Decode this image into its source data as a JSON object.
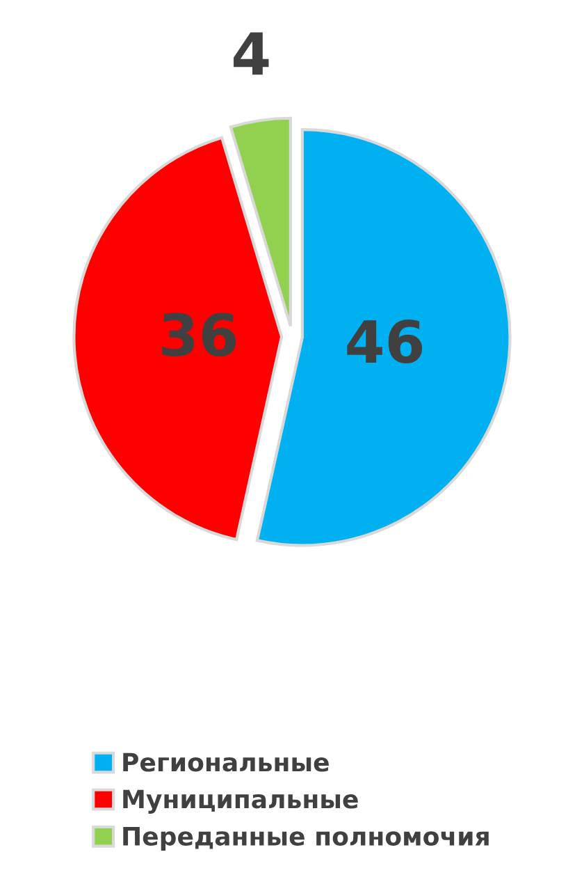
{
  "chart_data": {
    "type": "pie",
    "categories": [
      "Региональные",
      "Муниципальные",
      "Переданные полномочия"
    ],
    "values": [
      46,
      36,
      4
    ],
    "colors": [
      "#00b0f0",
      "#ff0000",
      "#92d050"
    ],
    "data_labels": true,
    "legend": "bottom"
  }
}
